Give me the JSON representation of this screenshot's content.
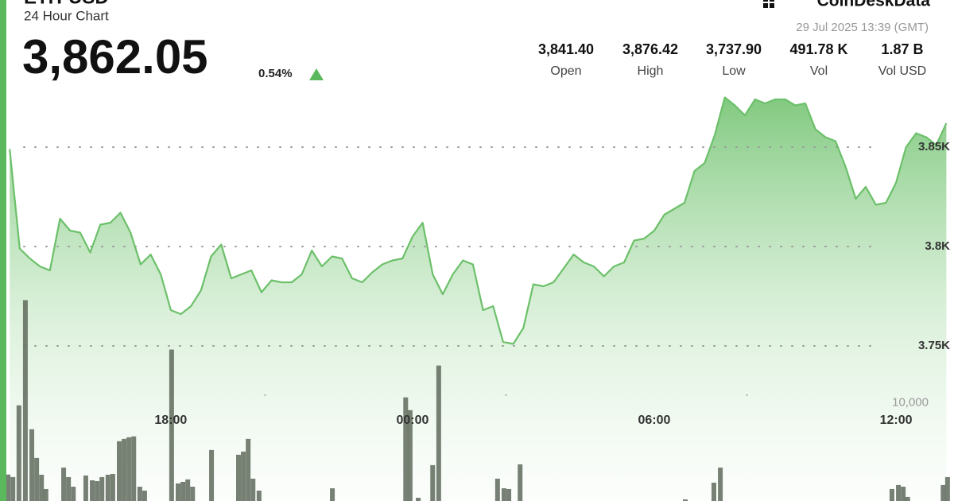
{
  "chart_data": {
    "type": "line",
    "title": "ETH-USD",
    "subtitle": "24 Hour Chart",
    "price": "3,862.05",
    "change": "0.54%",
    "brand": "CoinDeskData",
    "timestamp": "29 Jul 2025 13:39 (GMT)",
    "stats": [
      {
        "value": "3,841.40",
        "label": "Open"
      },
      {
        "value": "3,876.42",
        "label": "High"
      },
      {
        "value": "3,737.90",
        "label": "Low"
      },
      {
        "value": "491.78 K",
        "label": "Vol"
      },
      {
        "value": "1.87 B",
        "label": "Vol USD"
      }
    ],
    "color": "#6cc06a",
    "x": [
      14.0,
      14.25,
      14.5,
      14.75,
      15.0,
      15.25,
      15.5,
      15.75,
      16.0,
      16.25,
      16.5,
      16.75,
      17.0,
      17.25,
      17.5,
      17.75,
      18.0,
      18.25,
      18.5,
      18.75,
      19.0,
      19.25,
      19.5,
      19.75,
      20.0,
      20.25,
      20.5,
      20.75,
      21.0,
      21.25,
      21.5,
      21.75,
      22.0,
      22.25,
      22.5,
      22.75,
      23.0,
      23.25,
      23.5,
      23.75,
      24.0,
      24.25,
      24.5,
      24.75,
      25.0,
      25.25,
      25.5,
      25.75,
      26.0,
      26.25,
      26.5,
      26.75,
      27.0,
      27.25,
      27.5,
      27.75,
      28.0,
      28.25,
      28.5,
      28.75,
      29.0,
      29.25,
      29.5,
      29.75,
      30.0,
      30.25,
      30.5,
      30.75,
      31.0,
      31.25,
      31.5,
      31.75,
      32.0,
      32.25,
      32.5,
      32.75,
      33.0,
      33.25,
      33.5,
      33.75,
      34.0,
      34.25,
      34.5,
      34.75,
      35.0,
      35.25,
      35.5,
      35.75,
      36.0,
      36.25,
      36.5,
      36.75,
      37.0,
      37.25
    ],
    "values": [
      3849,
      3799,
      3794,
      3790,
      3788,
      3814,
      3808,
      3807,
      3797,
      3811,
      3812,
      3817,
      3807,
      3791,
      3796,
      3786,
      3768,
      3766,
      3770,
      3778,
      3795,
      3801,
      3784,
      3786,
      3788,
      3777,
      3783,
      3782,
      3782,
      3786,
      3798,
      3790,
      3795,
      3794,
      3784,
      3782,
      3787,
      3791,
      3793,
      3794,
      3805,
      3812,
      3786,
      3776,
      3786,
      3793,
      3791,
      3768,
      3770,
      3752,
      3751,
      3759,
      3781,
      3780,
      3782,
      3789,
      3796,
      3792,
      3790,
      3785,
      3790,
      3792,
      3803,
      3804,
      3808,
      3816,
      3819,
      3822,
      3838,
      3842,
      3856,
      3875,
      3871,
      3866,
      3874,
      3872,
      3874,
      3874,
      3871,
      3872,
      3859,
      3855,
      3853,
      3840,
      3824,
      3830,
      3821,
      3822,
      3832,
      3850,
      3857,
      3855,
      3851,
      3862.05
    ],
    "xlim": [
      13.76,
      37.44
    ],
    "xticks": [
      {
        "value": 18,
        "label": "18:00"
      },
      {
        "value": 24,
        "label": "00:00"
      },
      {
        "value": 30,
        "label": "06:00"
      },
      {
        "value": 36,
        "label": "12:00"
      }
    ],
    "ylim": [
      3672,
      3884
    ],
    "yticks": [
      {
        "value": 3750,
        "label": "3.75K"
      },
      {
        "value": 3800,
        "label": "3.8K"
      },
      {
        "value": 3850,
        "label": "3.85K"
      }
    ],
    "grid": true,
    "volume": {
      "color": "#5f6a5c",
      "x": [
        13.96,
        14.08,
        14.23,
        14.39,
        14.55,
        14.67,
        14.79,
        14.9,
        15.34,
        15.46,
        15.58,
        15.89,
        16.05,
        16.17,
        16.29,
        16.44,
        16.56,
        16.72,
        16.84,
        16.96,
        17.08,
        17.23,
        17.35,
        18.02,
        18.18,
        18.3,
        18.42,
        18.54,
        19.01,
        19.68,
        19.8,
        19.92,
        20.04,
        20.19,
        22.01,
        23.83,
        23.94,
        24.14,
        24.5,
        24.65,
        26.11,
        26.27,
        26.39,
        26.67,
        30.77,
        31.48,
        31.64,
        35.9,
        36.06,
        36.18,
        36.29,
        37.17,
        37.28
      ],
      "values": [
        2700,
        2440,
        9760,
        20490,
        7320,
        4390,
        2680,
        1220,
        3410,
        2440,
        1460,
        2600,
        2110,
        2030,
        2440,
        2680,
        2760,
        6100,
        6340,
        6500,
        6590,
        1460,
        1060,
        15450,
        1790,
        1950,
        2200,
        1460,
        5200,
        4720,
        5040,
        6340,
        2280,
        1060,
        1300,
        10570,
        9270,
        330,
        3660,
        13820,
        2280,
        1300,
        1220,
        3740,
        160,
        1870,
        3410,
        1220,
        1630,
        1460,
        410,
        1630,
        2440
      ],
      "y2lim": [
        0,
        43000
      ],
      "y2ticks": [
        {
          "value": 10000,
          "label": "10,000"
        }
      ]
    }
  }
}
